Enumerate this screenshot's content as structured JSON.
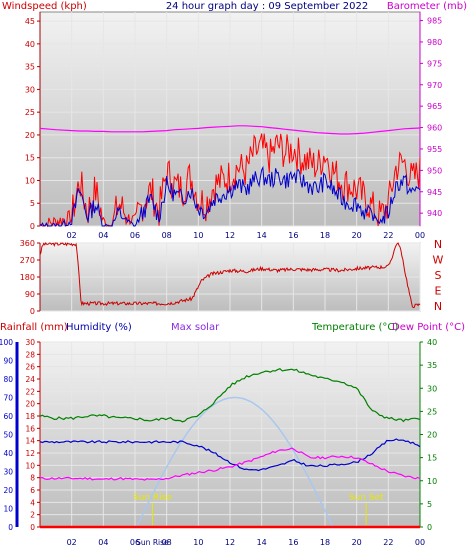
{
  "top_panel": {
    "left_title": "Windspeed (kph)",
    "center_title": "24 hour graph day : 09 September 2022",
    "right_title": "Barometer (mb)",
    "left_ticks": [
      "0",
      "5",
      "10",
      "15",
      "20",
      "25",
      "30",
      "35",
      "40",
      "45"
    ],
    "right_ticks": [
      "940",
      "945",
      "950",
      "955",
      "960",
      "965",
      "970",
      "975",
      "980",
      "985"
    ],
    "x_ticks": [
      "02",
      "04",
      "06",
      "08",
      "10",
      "12",
      "14",
      "16",
      "18",
      "20",
      "22",
      "00"
    ]
  },
  "mid_panel": {
    "left_ticks": [
      "0",
      "90",
      "180",
      "270",
      "360"
    ],
    "direction_labels": [
      "N",
      "W",
      "S",
      "E",
      "N"
    ]
  },
  "bottom_panel": {
    "titles": {
      "rainfall": "Rainfall (mm)",
      "humidity": "Humidity (%)",
      "solar": "Max solar",
      "temperature": "Temperature (°C)",
      "dewpoint": "Dew Point (°C)"
    },
    "humidity_ticks": [
      "0",
      "10",
      "20",
      "30",
      "40",
      "50",
      "60",
      "70",
      "80",
      "90",
      "100"
    ],
    "rain_ticks": [
      "0",
      "2",
      "4",
      "6",
      "8",
      "10",
      "12",
      "14",
      "16",
      "18",
      "20",
      "22",
      "24",
      "26",
      "28",
      "30"
    ],
    "temp_ticks": [
      "0",
      "5",
      "10",
      "15",
      "20",
      "25",
      "30",
      "35",
      "40"
    ],
    "x_ticks": [
      "02",
      "04",
      "06",
      "08",
      "Sun Rise",
      "10",
      "12",
      "14",
      "16",
      "18",
      "20",
      "22",
      "00"
    ],
    "sunrise_label": "Sun Rise",
    "sunset_label": "Sun Set"
  },
  "colors": {
    "wind": "#ff0000",
    "gust": "#0000cc",
    "barometer": "#ff00ff",
    "direction": "#cc0000",
    "temperature": "#008000",
    "humidity": "#0000cc",
    "dewpoint": "#ff00ff",
    "solar": "#a9c8ee",
    "sun_marker": "#e8e800"
  },
  "chart_data": [
    {
      "type": "line",
      "title": "24 hour graph day : 09 September 2022",
      "ylabel": "Windspeed (kph)",
      "y2label": "Barometer (mb)",
      "ylim": [
        0,
        47
      ],
      "y2lim": [
        937,
        987
      ],
      "x_hours": [
        0,
        1,
        2,
        2.5,
        3,
        3.5,
        4,
        4.5,
        5,
        5.5,
        6,
        6.5,
        7,
        7.5,
        8,
        8.5,
        9,
        9.5,
        10,
        10.5,
        11,
        11.5,
        12,
        12.5,
        13,
        13.5,
        14,
        14.5,
        15,
        15.5,
        16,
        16.5,
        17,
        17.5,
        18,
        18.5,
        19,
        19.5,
        20,
        20.5,
        21,
        21.5,
        22,
        22.5,
        23,
        23.5,
        24
      ],
      "series": [
        {
          "name": "Windspeed (kph)",
          "values": [
            0,
            1,
            2,
            10,
            3,
            8,
            1,
            0,
            5,
            2,
            1,
            5,
            8,
            3,
            12,
            9,
            8,
            11,
            6,
            5,
            9,
            10,
            11,
            13,
            12,
            16,
            17,
            15,
            18,
            16,
            17,
            15,
            14,
            13,
            16,
            12,
            10,
            9,
            8,
            6,
            4,
            2,
            5,
            13,
            14,
            10,
            12
          ]
        },
        {
          "name": "Gust",
          "values": [
            0,
            0,
            1,
            8,
            2,
            5,
            0,
            0,
            3,
            1,
            0,
            3,
            6,
            2,
            9,
            7,
            6,
            8,
            4,
            3,
            6,
            7,
            8,
            9,
            8,
            10,
            11,
            10,
            11,
            10,
            11,
            10,
            9,
            8,
            10,
            8,
            6,
            5,
            5,
            3,
            2,
            1,
            3,
            9,
            10,
            7,
            9
          ]
        },
        {
          "name": "Barometer (mb)",
          "values": [
            959.8,
            959.5,
            959.3,
            959.2,
            959.2,
            959.1,
            959.1,
            959.0,
            959.0,
            959.0,
            959.0,
            959.0,
            959.1,
            959.2,
            959.3,
            959.5,
            959.6,
            959.7,
            959.8,
            960.0,
            960.1,
            960.2,
            960.3,
            960.4,
            960.4,
            960.3,
            960.2,
            960.0,
            959.8,
            959.6,
            959.4,
            959.2,
            959.0,
            958.8,
            958.7,
            958.6,
            958.5,
            958.5,
            958.6,
            958.7,
            958.9,
            959.1,
            959.3,
            959.5,
            959.7,
            959.8,
            959.9
          ]
        }
      ]
    },
    {
      "type": "line",
      "ylabel": "Wind direction",
      "ylim": [
        0,
        360
      ],
      "x_hours": [
        0,
        0.2,
        2.3,
        2.6,
        8.0,
        8.5,
        9.3,
        9.6,
        10.2,
        10.8,
        12,
        13,
        14,
        15,
        16,
        17,
        18,
        19,
        20,
        21,
        22,
        22.3,
        22.5,
        22.7,
        23.5,
        24
      ],
      "series": [
        {
          "name": "Wind direction",
          "values": [
            300,
            355,
            355,
            40,
            40,
            45,
            60,
            65,
            160,
            195,
            215,
            210,
            225,
            215,
            222,
            218,
            220,
            215,
            225,
            230,
            235,
            300,
            355,
            355,
            25,
            35
          ]
        }
      ]
    },
    {
      "type": "line",
      "ylim": [
        0,
        100
      ],
      "x_hours": [
        0,
        1,
        2,
        3,
        4,
        5,
        6,
        7,
        8,
        9,
        10,
        11,
        12,
        13,
        14,
        15,
        16,
        17,
        18,
        19,
        20,
        21,
        22,
        23,
        24
      ],
      "series": [
        {
          "name": "Temperature (°C)",
          "values": [
            24,
            23.5,
            23.5,
            24,
            24,
            23.5,
            23.5,
            23,
            23.5,
            23,
            24,
            27,
            30.5,
            32.5,
            33.5,
            34,
            34,
            33,
            32,
            31.5,
            30,
            25,
            23.5,
            23,
            23.5
          ]
        },
        {
          "name": "Humidity (%)",
          "values": [
            46,
            46,
            46,
            46,
            46,
            46,
            46,
            46,
            46,
            46,
            44,
            40,
            35,
            31,
            31,
            33,
            36,
            33,
            33,
            34,
            35,
            40,
            47,
            47,
            44
          ]
        },
        {
          "name": "Dew Point (°C)",
          "values": [
            10.5,
            10.5,
            10.5,
            10.5,
            10.3,
            10.5,
            10.3,
            10.2,
            10.5,
            11.2,
            11.8,
            12.3,
            13,
            14,
            15.2,
            16.5,
            17,
            15,
            15,
            15.3,
            15,
            13.5,
            12,
            11,
            10.5
          ]
        },
        {
          "name": "Max solar",
          "values": [
            0,
            0,
            0,
            0,
            0,
            0,
            0,
            5,
            25,
            45,
            58,
            66,
            70,
            68,
            60,
            45,
            25,
            5,
            0,
            0,
            0,
            0,
            0,
            0,
            0
          ]
        },
        {
          "name": "Rainfall (mm)",
          "values": [
            0,
            0,
            0,
            0,
            0,
            0,
            0,
            0,
            0,
            0,
            0,
            0,
            0,
            0,
            0,
            0,
            0,
            0,
            0,
            0,
            0,
            0,
            0,
            0,
            0
          ]
        }
      ]
    }
  ]
}
